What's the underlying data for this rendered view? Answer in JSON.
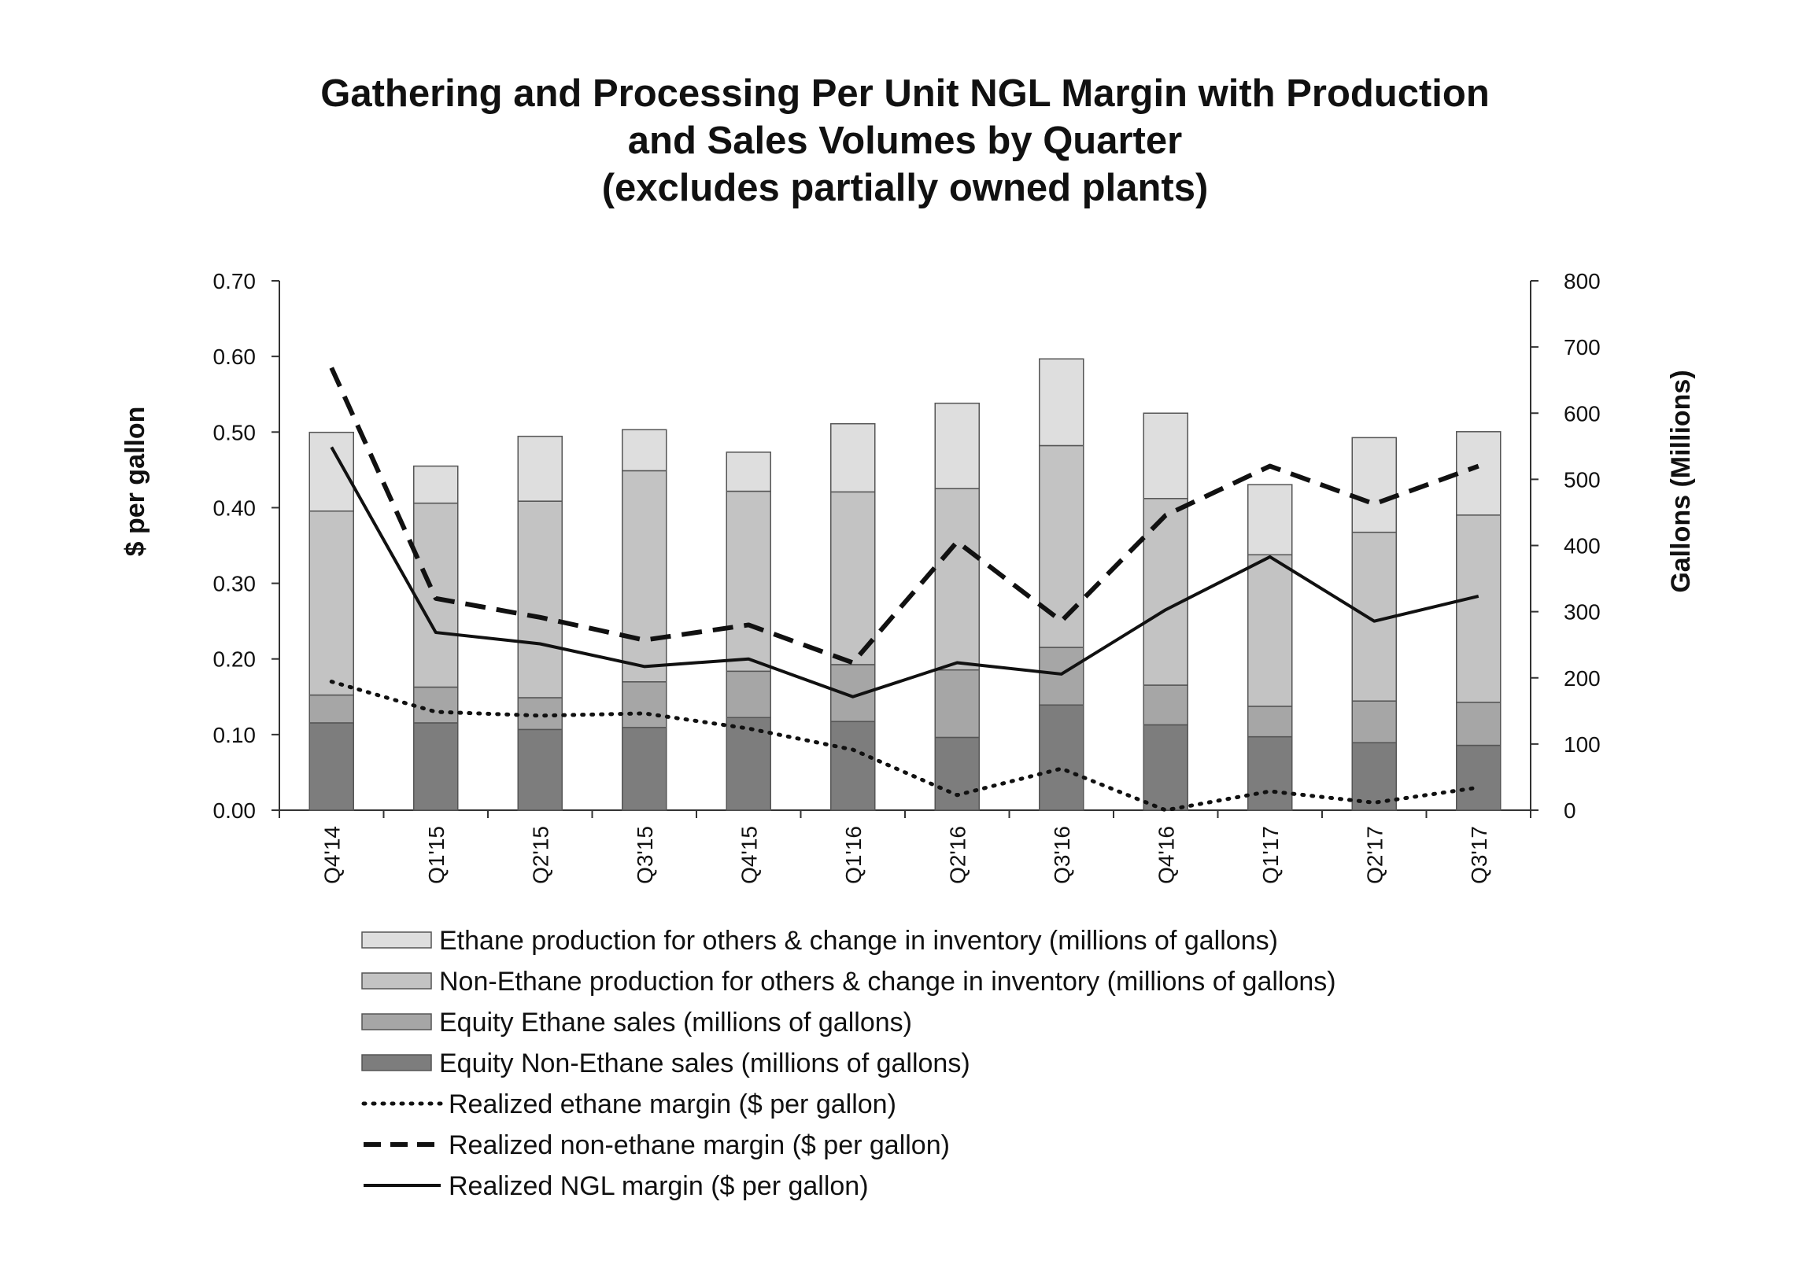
{
  "chart_data": {
    "type": "bar",
    "title_lines": [
      "Gathering and Processing Per Unit NGL Margin with Production",
      "and Sales Volumes by Quarter",
      "(excludes partially owned plants)"
    ],
    "categories": [
      "Q4'14",
      "Q1'15",
      "Q2'15",
      "Q3'15",
      "Q4'15",
      "Q1'16",
      "Q2'16",
      "Q3'16",
      "Q4'16",
      "Q1'17",
      "Q2'17",
      "Q3'17"
    ],
    "y_left": {
      "label": "$ per gallon",
      "range": [
        0,
        0.7
      ],
      "ticks": [
        "0.00",
        "0.10",
        "0.20",
        "0.30",
        "0.40",
        "0.50",
        "0.60",
        "0.70"
      ]
    },
    "y_right": {
      "label": "Gallons (Millions)",
      "range": [
        0,
        800
      ],
      "ticks": [
        "0",
        "100",
        "200",
        "300",
        "400",
        "500",
        "600",
        "700",
        "800"
      ]
    },
    "bar_series": [
      {
        "name": "Equity Non-Ethane sales (millions of gallons)",
        "axis": "right",
        "color": "#7d7d7d",
        "values": [
          132,
          132,
          122,
          125,
          140,
          134,
          110,
          159,
          129,
          111,
          102,
          98
        ]
      },
      {
        "name": "Equity Ethane sales (millions of gallons)",
        "axis": "right",
        "color": "#a6a6a6",
        "values": [
          42,
          54,
          48,
          69,
          70,
          86,
          102,
          87,
          60,
          46,
          63,
          65
        ]
      },
      {
        "name": "Non-Ethane production for others & change in inventory (millions of gallons)",
        "axis": "right",
        "color": "#c3c3c3",
        "values": [
          278,
          278,
          297,
          319,
          272,
          261,
          274,
          305,
          282,
          229,
          255,
          283
        ]
      },
      {
        "name": "Ethane production for others & change in inventory (millions of gallons)",
        "axis": "right",
        "color": "#dedede",
        "values": [
          119,
          56,
          98,
          62,
          59,
          103,
          129,
          131,
          129,
          106,
          143,
          126
        ]
      }
    ],
    "line_series": [
      {
        "name": "Realized ethane margin ($ per gallon)",
        "axis": "left",
        "style": "dotted",
        "values": [
          0.17,
          0.13,
          0.125,
          0.128,
          0.108,
          0.08,
          0.02,
          0.055,
          0.0,
          0.025,
          0.01,
          0.03
        ]
      },
      {
        "name": "Realized non-ethane margin ($ per gallon)",
        "axis": "left",
        "style": "dashed",
        "values": [
          0.585,
          0.28,
          0.255,
          0.225,
          0.245,
          0.195,
          0.355,
          0.25,
          0.39,
          0.455,
          0.405,
          0.455
        ]
      },
      {
        "name": "Realized NGL margin ($ per gallon)",
        "axis": "left",
        "style": "solid",
        "values": [
          0.48,
          0.235,
          0.22,
          0.19,
          0.2,
          0.15,
          0.195,
          0.18,
          0.265,
          0.335,
          0.25,
          0.283
        ]
      }
    ],
    "legend_order": [
      "Ethane production for others & change in inventory (millions of gallons)",
      "Non-Ethane production for others & change in inventory (millions of gallons)",
      "Equity Ethane sales (millions of gallons)",
      "Equity Non-Ethane sales (millions of gallons)",
      "Realized ethane margin ($ per gallon)",
      "Realized non-ethane margin ($ per gallon)",
      "Realized NGL margin ($ per gallon)"
    ],
    "legend_position": "bottom"
  }
}
